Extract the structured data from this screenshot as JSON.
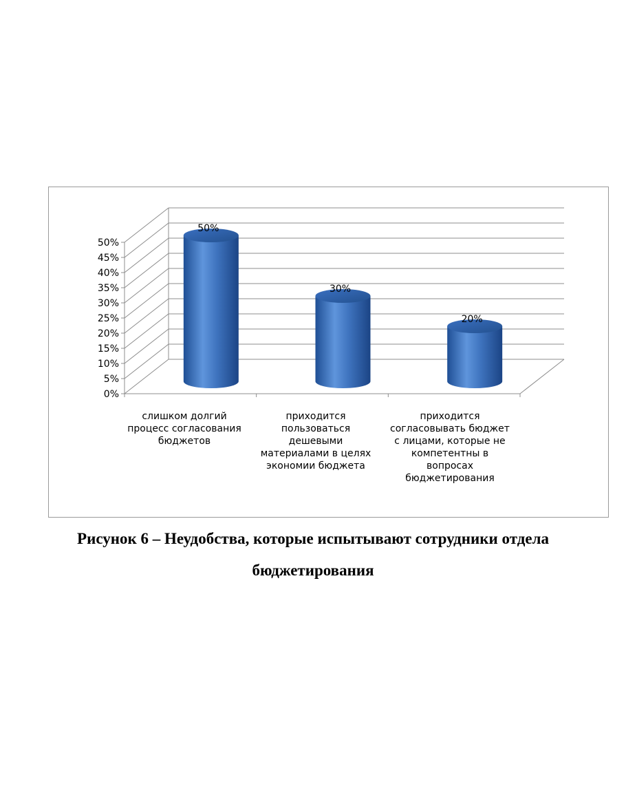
{
  "chart_data": {
    "type": "bar",
    "style": "3d-cylinder",
    "categories": [
      "слишком долгий процесс согласования бюджетов",
      "приходится пользоваться дешевыми материалами в целях экономии бюджета",
      "приходится согласовывать бюджет с лицами, которые не компетентны в вопросах бюджетирования"
    ],
    "category_lines": [
      [
        "слишком долгий",
        "процесс согласования",
        "бюджетов"
      ],
      [
        "приходится",
        "пользоваться",
        "дешевыми",
        "материалами в целях",
        "экономии бюджета"
      ],
      [
        "приходится",
        "согласовывать бюджет",
        "с лицами, которые не",
        "компетентны в",
        "вопросах",
        "бюджетирования"
      ]
    ],
    "values": [
      50,
      30,
      20
    ],
    "data_labels": [
      "50%",
      "30%",
      "20%"
    ],
    "yticks": [
      "0%",
      "5%",
      "10%",
      "15%",
      "20%",
      "25%",
      "30%",
      "35%",
      "40%",
      "45%",
      "50%"
    ],
    "ylim": [
      0,
      50
    ],
    "grid": true,
    "legend": "none",
    "bar_color": "#4a7fc7"
  },
  "caption": {
    "line1": "Рисунок 6 – Неудобства, которые испытывают сотрудники отдела",
    "line2": "бюджетирования"
  }
}
